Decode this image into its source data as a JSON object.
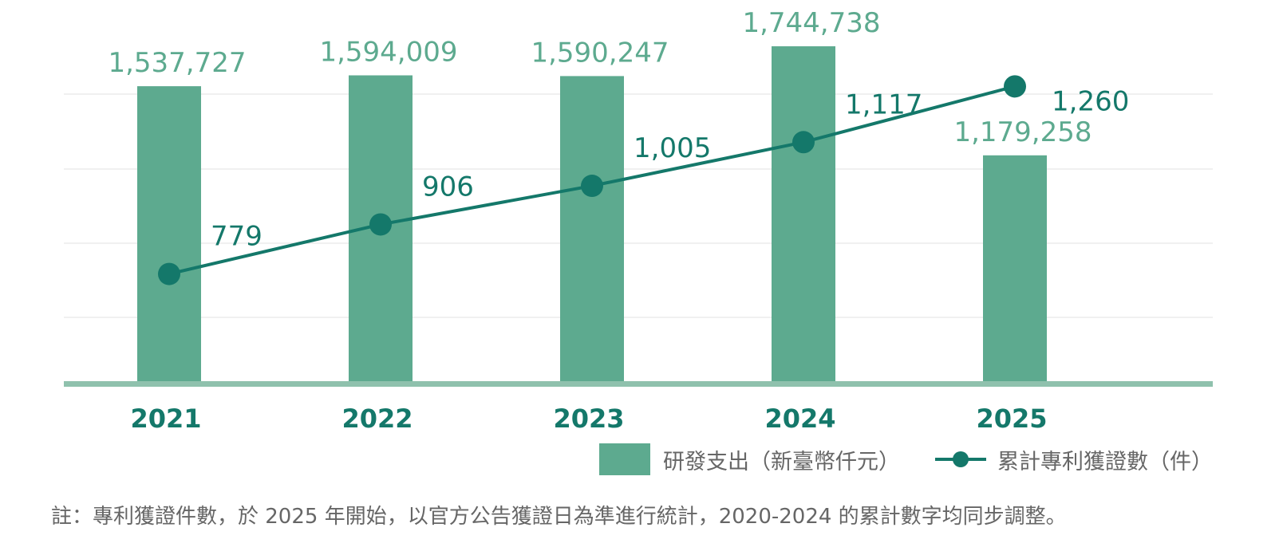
{
  "chart_data": {
    "type": "bar",
    "categories": [
      "2021",
      "2022",
      "2023",
      "2024",
      "2025"
    ],
    "series": [
      {
        "name": "研發支出（新臺幣仟元）",
        "kind": "bar",
        "values": [
          1537727,
          1594009,
          1590247,
          1744738,
          1179258
        ],
        "labels": [
          "1,537,727",
          "1,594,009",
          "1,590,247",
          "1,744,738",
          "1,179,258"
        ]
      },
      {
        "name": "累計專利獲證數（件）",
        "kind": "line",
        "values": [
          779,
          906,
          1005,
          1117,
          1260
        ],
        "labels": [
          "779",
          "906",
          "1,005",
          "1,117",
          "1,260"
        ]
      }
    ],
    "bar_axis_range": [
      0,
      1840000
    ],
    "line_axis_range": [
      500,
      1410
    ],
    "grid": true,
    "legend": "bottom-right"
  },
  "legend": {
    "bar_label": "研發支出（新臺幣仟元）",
    "line_label": "累計專利獲證數（件）"
  },
  "footnote": "註：專利獲證件數，於 2025 年開始，以官方公告獲證日為準進行統計，2020-2024 的累計數字均同步調整。",
  "colors": {
    "bar": "#5daa8f",
    "line": "#14786a",
    "baseline": "#8fc1ad",
    "grid": "#e2e2e2",
    "bar_label": "#5daa8f",
    "line_label": "#14786a",
    "axis_label": "#14786a"
  }
}
